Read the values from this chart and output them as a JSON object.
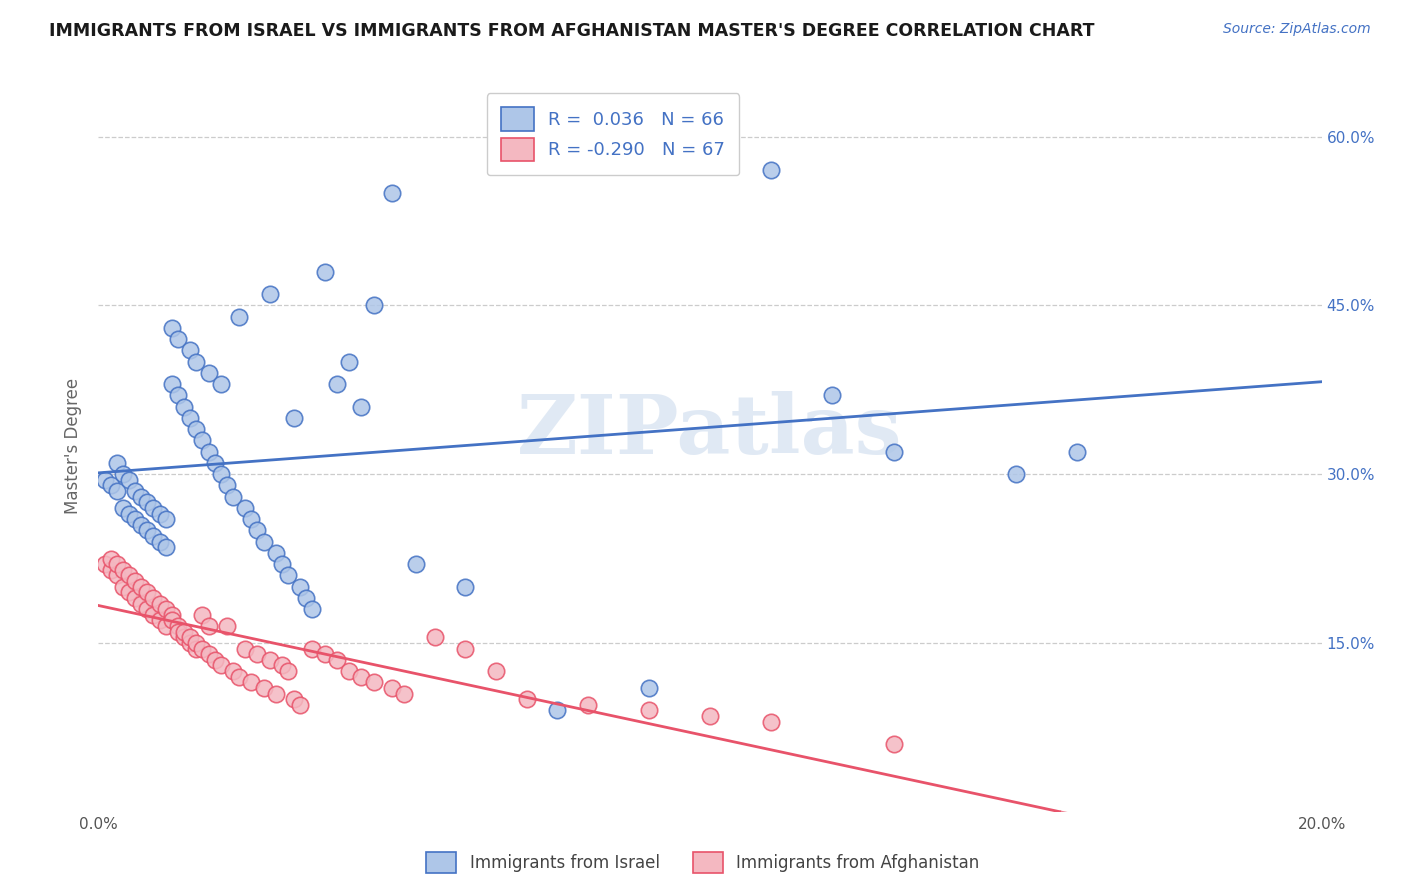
{
  "title": "IMMIGRANTS FROM ISRAEL VS IMMIGRANTS FROM AFGHANISTAN MASTER'S DEGREE CORRELATION CHART",
  "source_text": "Source: ZipAtlas.com",
  "ylabel": "Master's Degree",
  "xaxis_label_left": "0.0%",
  "xaxis_label_right": "20.0%",
  "yaxis_ticks": [
    0.0,
    0.15,
    0.3,
    0.45,
    0.6
  ],
  "yaxis_labels": [
    "",
    "15.0%",
    "30.0%",
    "45.0%",
    "60.0%"
  ],
  "xlim": [
    0.0,
    0.2
  ],
  "ylim": [
    0.0,
    0.65
  ],
  "legend_label1": "Immigrants from Israel",
  "legend_label2": "Immigrants from Afghanistan",
  "R1": 0.036,
  "N1": 66,
  "R2": -0.29,
  "N2": 67,
  "color_israel": "#aec6e8",
  "color_afghanistan": "#f4b8c1",
  "line_color_israel": "#4472C4",
  "line_color_afghanistan": "#E8536A",
  "watermark": "ZIPatlas",
  "israel_x": [
    0.001,
    0.002,
    0.003,
    0.003,
    0.004,
    0.004,
    0.005,
    0.005,
    0.006,
    0.006,
    0.007,
    0.007,
    0.008,
    0.008,
    0.009,
    0.009,
    0.01,
    0.01,
    0.011,
    0.011,
    0.012,
    0.012,
    0.013,
    0.013,
    0.014,
    0.015,
    0.015,
    0.016,
    0.016,
    0.017,
    0.018,
    0.018,
    0.019,
    0.02,
    0.02,
    0.021,
    0.022,
    0.023,
    0.024,
    0.025,
    0.026,
    0.027,
    0.028,
    0.029,
    0.03,
    0.031,
    0.032,
    0.033,
    0.034,
    0.035,
    0.037,
    0.039,
    0.041,
    0.043,
    0.045,
    0.048,
    0.052,
    0.06,
    0.075,
    0.09,
    0.1,
    0.11,
    0.12,
    0.13,
    0.15,
    0.16
  ],
  "israel_y": [
    0.295,
    0.29,
    0.285,
    0.31,
    0.27,
    0.3,
    0.265,
    0.295,
    0.26,
    0.285,
    0.255,
    0.28,
    0.25,
    0.275,
    0.245,
    0.27,
    0.24,
    0.265,
    0.235,
    0.26,
    0.38,
    0.43,
    0.37,
    0.42,
    0.36,
    0.35,
    0.41,
    0.34,
    0.4,
    0.33,
    0.32,
    0.39,
    0.31,
    0.3,
    0.38,
    0.29,
    0.28,
    0.44,
    0.27,
    0.26,
    0.25,
    0.24,
    0.46,
    0.23,
    0.22,
    0.21,
    0.35,
    0.2,
    0.19,
    0.18,
    0.48,
    0.38,
    0.4,
    0.36,
    0.45,
    0.55,
    0.22,
    0.2,
    0.09,
    0.11,
    0.61,
    0.57,
    0.37,
    0.32,
    0.3,
    0.32
  ],
  "afghanistan_x": [
    0.001,
    0.002,
    0.002,
    0.003,
    0.003,
    0.004,
    0.004,
    0.005,
    0.005,
    0.006,
    0.006,
    0.007,
    0.007,
    0.008,
    0.008,
    0.009,
    0.009,
    0.01,
    0.01,
    0.011,
    0.011,
    0.012,
    0.012,
    0.013,
    0.013,
    0.014,
    0.014,
    0.015,
    0.015,
    0.016,
    0.016,
    0.017,
    0.017,
    0.018,
    0.018,
    0.019,
    0.02,
    0.021,
    0.022,
    0.023,
    0.024,
    0.025,
    0.026,
    0.027,
    0.028,
    0.029,
    0.03,
    0.031,
    0.032,
    0.033,
    0.035,
    0.037,
    0.039,
    0.041,
    0.043,
    0.045,
    0.048,
    0.05,
    0.055,
    0.06,
    0.065,
    0.07,
    0.08,
    0.09,
    0.1,
    0.11,
    0.13
  ],
  "afghanistan_y": [
    0.22,
    0.215,
    0.225,
    0.21,
    0.22,
    0.2,
    0.215,
    0.195,
    0.21,
    0.19,
    0.205,
    0.185,
    0.2,
    0.18,
    0.195,
    0.175,
    0.19,
    0.17,
    0.185,
    0.165,
    0.18,
    0.175,
    0.17,
    0.165,
    0.16,
    0.155,
    0.16,
    0.15,
    0.155,
    0.145,
    0.15,
    0.175,
    0.145,
    0.14,
    0.165,
    0.135,
    0.13,
    0.165,
    0.125,
    0.12,
    0.145,
    0.115,
    0.14,
    0.11,
    0.135,
    0.105,
    0.13,
    0.125,
    0.1,
    0.095,
    0.145,
    0.14,
    0.135,
    0.125,
    0.12,
    0.115,
    0.11,
    0.105,
    0.155,
    0.145,
    0.125,
    0.1,
    0.095,
    0.09,
    0.085,
    0.08,
    0.06
  ]
}
